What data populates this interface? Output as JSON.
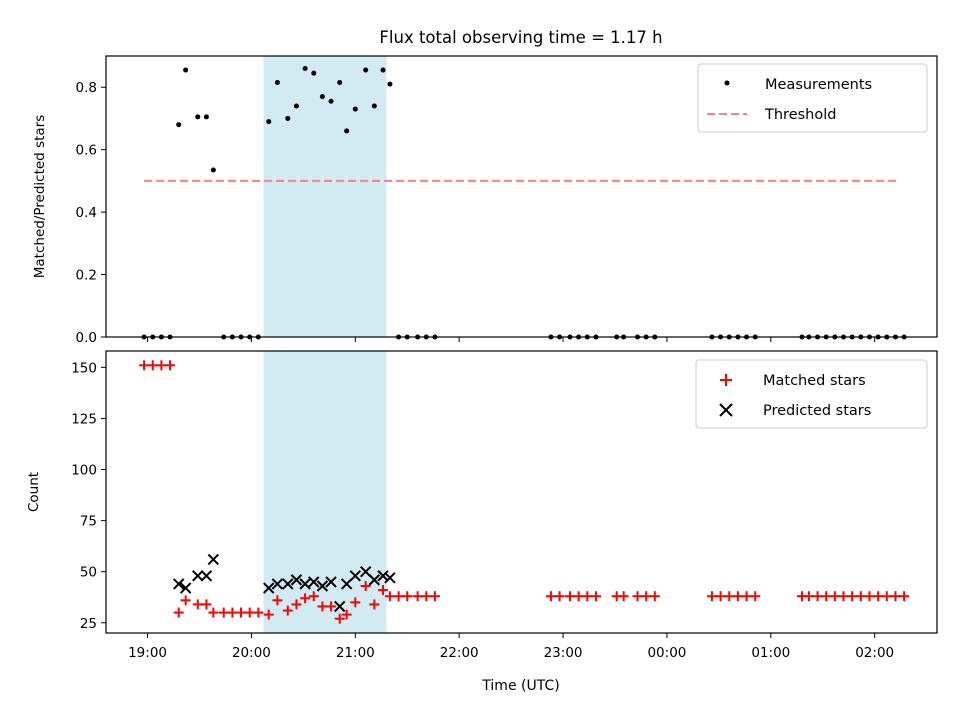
{
  "chart_data": [
    {
      "type": "scatter",
      "title": "Flux total observing time = 1.17 h",
      "xlabel": "",
      "ylabel": "Matched/Predicted stars",
      "xlim": [
        "18:36",
        "02:36"
      ],
      "ylim": [
        0,
        0.9
      ],
      "yticks": [
        0.0,
        0.2,
        0.4,
        0.6,
        0.8
      ],
      "ytick_labels": [
        "0.0",
        "0.2",
        "0.4",
        "0.6",
        "0.8"
      ],
      "xticks": [
        "19:00",
        "20:00",
        "21:00",
        "22:00",
        "23:00",
        "00:00",
        "01:00",
        "02:00"
      ],
      "shaded_interval": {
        "start": "20:07",
        "end": "21:18",
        "color": "#add8e6"
      },
      "legend_position": "top-right",
      "series": [
        {
          "name": "Measurements",
          "marker": "dot",
          "color": "#000000",
          "points": [
            [
              "18:58",
              0
            ],
            [
              "19:03",
              0
            ],
            [
              "19:08",
              0
            ],
            [
              "19:13",
              0
            ],
            [
              "19:18",
              0.68
            ],
            [
              "19:22",
              0.855
            ],
            [
              "19:29",
              0.705
            ],
            [
              "19:34",
              0.705
            ],
            [
              "19:38",
              0.535
            ],
            [
              "19:44",
              0
            ],
            [
              "19:49",
              0
            ],
            [
              "19:54",
              0
            ],
            [
              "19:59",
              0
            ],
            [
              "20:04",
              0
            ],
            [
              "20:10",
              0.69
            ],
            [
              "20:15",
              0.815
            ],
            [
              "20:21",
              0.7
            ],
            [
              "20:26",
              0.74
            ],
            [
              "20:31",
              0.86
            ],
            [
              "20:36",
              0.845
            ],
            [
              "20:41",
              0.77
            ],
            [
              "20:46",
              0.755
            ],
            [
              "20:51",
              0.815
            ],
            [
              "20:55",
              0.66
            ],
            [
              "21:00",
              0.73
            ],
            [
              "21:06",
              0.855
            ],
            [
              "21:11",
              0.74
            ],
            [
              "21:16",
              0.855
            ],
            [
              "21:20",
              0.81
            ],
            [
              "21:25",
              0
            ],
            [
              "21:30",
              0
            ],
            [
              "21:36",
              0
            ],
            [
              "21:41",
              0
            ],
            [
              "21:46",
              0
            ],
            [
              "22:53",
              0
            ],
            [
              "22:58",
              0
            ],
            [
              "23:04",
              0
            ],
            [
              "23:09",
              0
            ],
            [
              "23:14",
              0
            ],
            [
              "23:19",
              0
            ],
            [
              "23:31",
              0
            ],
            [
              "23:35",
              0
            ],
            [
              "23:43",
              0
            ],
            [
              "23:48",
              0
            ],
            [
              "23:53",
              0
            ],
            [
              "00:26",
              0
            ],
            [
              "00:31",
              0
            ],
            [
              "00:36",
              0
            ],
            [
              "00:41",
              0
            ],
            [
              "00:46",
              0
            ],
            [
              "00:51",
              0
            ],
            [
              "01:18",
              0
            ],
            [
              "01:22",
              0
            ],
            [
              "01:27",
              0
            ],
            [
              "01:32",
              0
            ],
            [
              "01:37",
              0
            ],
            [
              "01:42",
              0
            ],
            [
              "01:47",
              0
            ],
            [
              "01:52",
              0
            ],
            [
              "01:57",
              0
            ],
            [
              "02:02",
              0
            ],
            [
              "02:07",
              0
            ],
            [
              "02:12",
              0
            ],
            [
              "02:17",
              0
            ]
          ]
        },
        {
          "name": "Threshold",
          "marker": "dashed-line",
          "color": "#ff7f7f",
          "points": [
            [
              "18:58",
              0.5
            ],
            [
              "02:14",
              0.5
            ]
          ]
        }
      ]
    },
    {
      "type": "scatter",
      "title": "",
      "xlabel": "Time (UTC)",
      "ylabel": "Count",
      "xlim": [
        "18:36",
        "02:36"
      ],
      "ylim": [
        20,
        158
      ],
      "yticks": [
        25,
        50,
        75,
        100,
        125,
        150
      ],
      "ytick_labels": [
        "25",
        "50",
        "75",
        "100",
        "125",
        "150"
      ],
      "xticks": [
        "19:00",
        "20:00",
        "21:00",
        "22:00",
        "23:00",
        "00:00",
        "01:00",
        "02:00"
      ],
      "xtick_labels": [
        "19:00",
        "20:00",
        "21:00",
        "22:00",
        "23:00",
        "00:00",
        "01:00",
        "02:00"
      ],
      "shaded_interval": {
        "start": "20:07",
        "end": "21:18",
        "color": "#add8e6"
      },
      "legend_position": "top-right",
      "series": [
        {
          "name": "Matched stars",
          "marker": "plus",
          "color": "#ff0000",
          "points": [
            [
              "18:58",
              151
            ],
            [
              "19:03",
              151
            ],
            [
              "19:08",
              151
            ],
            [
              "19:13",
              151
            ],
            [
              "19:18",
              30
            ],
            [
              "19:22",
              36
            ],
            [
              "19:29",
              34
            ],
            [
              "19:34",
              34
            ],
            [
              "19:38",
              30
            ],
            [
              "19:44",
              30
            ],
            [
              "19:49",
              30
            ],
            [
              "19:54",
              30
            ],
            [
              "19:59",
              30
            ],
            [
              "20:04",
              30
            ],
            [
              "20:10",
              29
            ],
            [
              "20:15",
              36
            ],
            [
              "20:21",
              31
            ],
            [
              "20:26",
              34
            ],
            [
              "20:31",
              37
            ],
            [
              "20:36",
              38
            ],
            [
              "20:41",
              33
            ],
            [
              "20:46",
              33
            ],
            [
              "20:51",
              27
            ],
            [
              "20:55",
              29
            ],
            [
              "21:00",
              35
            ],
            [
              "21:06",
              43
            ],
            [
              "21:11",
              34
            ],
            [
              "21:16",
              41
            ],
            [
              "21:20",
              38
            ],
            [
              "21:25",
              38
            ],
            [
              "21:30",
              38
            ],
            [
              "21:36",
              38
            ],
            [
              "21:41",
              38
            ],
            [
              "21:46",
              38
            ],
            [
              "22:53",
              38
            ],
            [
              "22:58",
              38
            ],
            [
              "23:04",
              38
            ],
            [
              "23:09",
              38
            ],
            [
              "23:14",
              38
            ],
            [
              "23:19",
              38
            ],
            [
              "23:31",
              38
            ],
            [
              "23:35",
              38
            ],
            [
              "23:43",
              38
            ],
            [
              "23:48",
              38
            ],
            [
              "23:53",
              38
            ],
            [
              "00:26",
              38
            ],
            [
              "00:31",
              38
            ],
            [
              "00:36",
              38
            ],
            [
              "00:41",
              38
            ],
            [
              "00:46",
              38
            ],
            [
              "00:51",
              38
            ],
            [
              "01:18",
              38
            ],
            [
              "01:22",
              38
            ],
            [
              "01:27",
              38
            ],
            [
              "01:32",
              38
            ],
            [
              "01:37",
              38
            ],
            [
              "01:42",
              38
            ],
            [
              "01:47",
              38
            ],
            [
              "01:52",
              38
            ],
            [
              "01:57",
              38
            ],
            [
              "02:02",
              38
            ],
            [
              "02:07",
              38
            ],
            [
              "02:12",
              38
            ],
            [
              "02:17",
              38
            ]
          ]
        },
        {
          "name": "Predicted stars",
          "marker": "x",
          "color": "#000000",
          "points": [
            [
              "19:18",
              44
            ],
            [
              "19:22",
              42
            ],
            [
              "19:29",
              48
            ],
            [
              "19:34",
              48
            ],
            [
              "19:38",
              56
            ],
            [
              "20:10",
              42
            ],
            [
              "20:15",
              44
            ],
            [
              "20:21",
              44
            ],
            [
              "20:26",
              46
            ],
            [
              "20:31",
              44
            ],
            [
              "20:36",
              45
            ],
            [
              "20:41",
              43
            ],
            [
              "20:46",
              45
            ],
            [
              "20:51",
              33
            ],
            [
              "20:55",
              44
            ],
            [
              "21:00",
              48
            ],
            [
              "21:06",
              50
            ],
            [
              "21:11",
              46
            ],
            [
              "21:16",
              48
            ],
            [
              "21:20",
              47
            ]
          ]
        }
      ]
    }
  ]
}
